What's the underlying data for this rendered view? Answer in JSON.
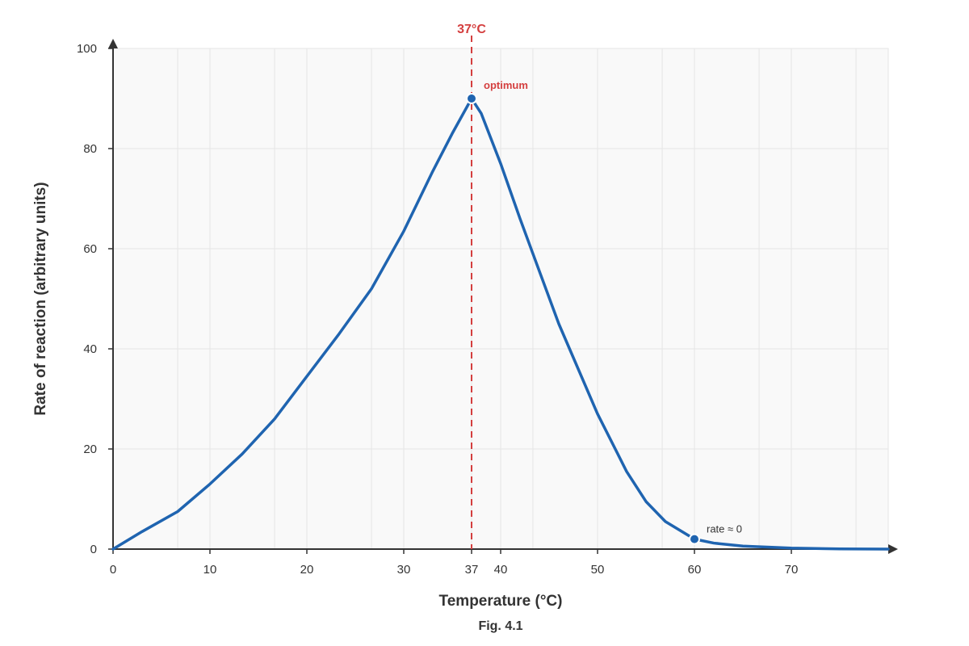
{
  "chart_data": {
    "type": "line",
    "xlabel": "Temperature (°C)",
    "ylabel": "Rate of reaction (arbitrary units)",
    "caption": "Fig. 4.1",
    "xlim": [
      0,
      80
    ],
    "ylim": [
      0,
      100
    ],
    "x_ticks": [
      0,
      10,
      20,
      30,
      37,
      40,
      50,
      60,
      70
    ],
    "y_ticks": [
      0,
      20,
      40,
      60,
      80,
      100
    ],
    "x_gridlines": [
      0,
      6.67,
      10,
      16.67,
      20,
      26.67,
      30,
      37,
      40,
      43.33,
      50,
      56.67,
      60,
      66.67,
      70,
      76.67,
      80
    ],
    "y_gridlines": [
      0,
      20,
      40,
      60,
      80,
      100
    ],
    "grid": true,
    "series": [
      {
        "x": [
          0,
          3,
          6.67,
          10,
          13.33,
          16.67,
          20,
          23.33,
          26.67,
          30,
          33,
          35,
          37,
          38,
          40,
          42,
          43.33,
          46,
          50,
          53,
          55,
          57,
          60,
          62,
          65,
          70,
          75,
          80
        ],
        "y": [
          0,
          3.5,
          7.5,
          13,
          19,
          26,
          34.5,
          43,
          52,
          63.5,
          75.5,
          83,
          90,
          87,
          77,
          66,
          59,
          45,
          27,
          15.5,
          9.5,
          5.5,
          2,
          1.2,
          0.6,
          0.2,
          0.05,
          0
        ],
        "color": "#1f64b0"
      }
    ],
    "optimum": {
      "x": 37,
      "y": 90,
      "marker_label": "37°C",
      "label": "optimum",
      "color": "#d43f3f"
    },
    "zero_point": {
      "x": 60,
      "y": 2,
      "label": "rate ≈ 0"
    },
    "colors": {
      "curve": "#1f64b0",
      "optimum": "#d43f3f",
      "grid": "#e5e5e5",
      "plot_bg": "#f9f9f9",
      "axis": "#333333"
    }
  }
}
